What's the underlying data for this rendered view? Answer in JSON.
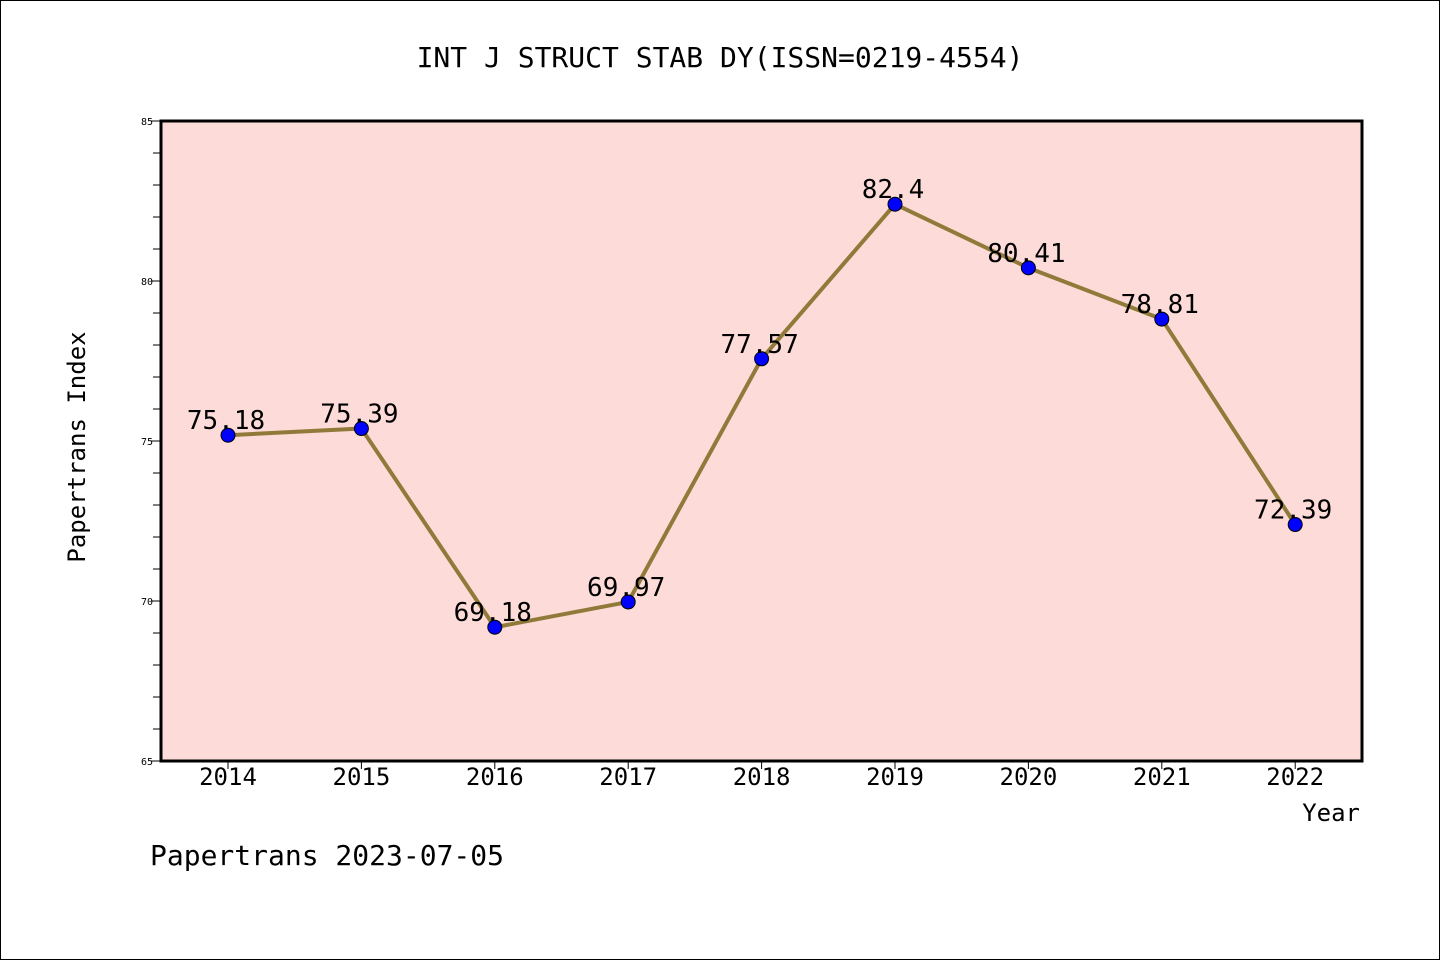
{
  "chart_data": {
    "type": "line",
    "title": "INT J STRUCT STAB DY(ISSN=0219-4554)",
    "xlabel": "Year",
    "ylabel": "Papertrans Index",
    "x": [
      "2014",
      "2015",
      "2016",
      "2017",
      "2018",
      "2019",
      "2020",
      "2021",
      "2022"
    ],
    "series": [
      {
        "values": [
          75.18,
          75.39,
          69.18,
          69.97,
          77.57,
          82.4,
          80.41,
          78.81,
          72.39
        ],
        "data_labels": [
          "75.18",
          "75.39",
          "69.18",
          "69.97",
          "77.57",
          "82.4",
          "80.41",
          "78.81",
          "72.39"
        ]
      }
    ],
    "ylim": [
      65,
      85
    ],
    "y_ticks": [
      "65",
      "70",
      "75",
      "80",
      "85"
    ],
    "grid": false,
    "colors": {
      "plot_background": "#FDDBD8",
      "line": "#8F7A3A",
      "marker": "#0000FF",
      "frame": "#000000"
    }
  },
  "footer": {
    "note": "Papertrans 2023-07-05"
  }
}
